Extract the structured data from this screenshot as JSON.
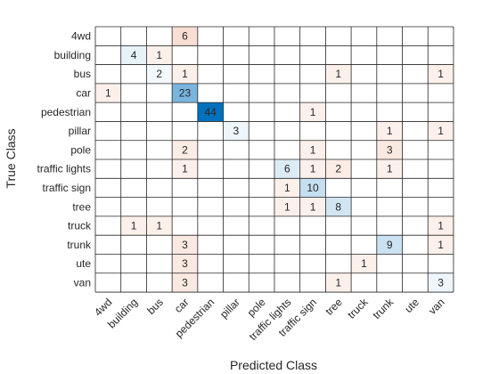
{
  "chart_data": {
    "type": "heatmap",
    "subtype": "confusion-matrix",
    "xlabel": "Predicted Class",
    "ylabel": "True Class",
    "classes": [
      "4wd",
      "building",
      "bus",
      "car",
      "pedestrian",
      "pillar",
      "pole",
      "traffic lights",
      "traffic sign",
      "tree",
      "truck",
      "trunk",
      "ute",
      "van"
    ],
    "matrix": [
      [
        0,
        0,
        0,
        6,
        0,
        0,
        0,
        0,
        0,
        0,
        0,
        0,
        0,
        0
      ],
      [
        0,
        4,
        1,
        0,
        0,
        0,
        0,
        0,
        0,
        0,
        0,
        0,
        0,
        0
      ],
      [
        0,
        0,
        2,
        1,
        0,
        0,
        0,
        0,
        0,
        1,
        0,
        0,
        0,
        1
      ],
      [
        1,
        0,
        0,
        23,
        0,
        0,
        0,
        0,
        0,
        0,
        0,
        0,
        0,
        0
      ],
      [
        0,
        0,
        0,
        0,
        44,
        0,
        0,
        0,
        1,
        0,
        0,
        0,
        0,
        0
      ],
      [
        0,
        0,
        0,
        0,
        0,
        3,
        0,
        0,
        0,
        0,
        0,
        1,
        0,
        1
      ],
      [
        0,
        0,
        0,
        2,
        0,
        0,
        0,
        0,
        1,
        0,
        0,
        3,
        0,
        0
      ],
      [
        0,
        0,
        0,
        1,
        0,
        0,
        0,
        6,
        1,
        2,
        0,
        1,
        0,
        0
      ],
      [
        0,
        0,
        0,
        0,
        0,
        0,
        0,
        1,
        10,
        0,
        0,
        0,
        0,
        0
      ],
      [
        0,
        0,
        0,
        0,
        0,
        0,
        0,
        1,
        1,
        8,
        0,
        0,
        0,
        0
      ],
      [
        0,
        1,
        1,
        0,
        0,
        0,
        0,
        0,
        0,
        0,
        0,
        0,
        0,
        1
      ],
      [
        0,
        0,
        0,
        3,
        0,
        0,
        0,
        0,
        0,
        0,
        0,
        9,
        0,
        1
      ],
      [
        0,
        0,
        0,
        3,
        0,
        0,
        0,
        0,
        0,
        0,
        1,
        0,
        0,
        0
      ],
      [
        0,
        0,
        0,
        3,
        0,
        0,
        0,
        0,
        0,
        1,
        0,
        0,
        0,
        3
      ]
    ],
    "colors": {
      "diagonal_max": "#0072bd",
      "offdiagonal_max": "#d95319",
      "empty": "#ffffff",
      "grid": "#262626",
      "text_dark": "#262626",
      "text_light": "#ffffff"
    }
  }
}
